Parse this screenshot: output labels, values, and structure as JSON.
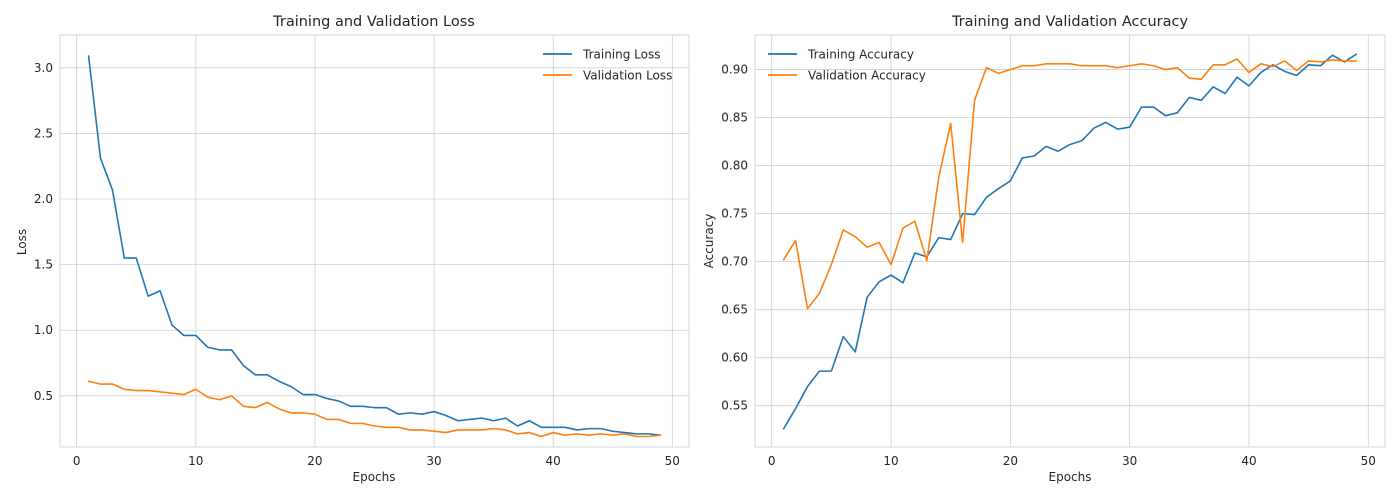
{
  "chart_data": [
    {
      "type": "line",
      "title": "Training and Validation Loss",
      "xlabel": "Epochs",
      "ylabel": "Loss",
      "xlim": [
        -1.4,
        51.4
      ],
      "ylim": [
        0.11,
        3.25
      ],
      "xticks": [
        0,
        10,
        20,
        30,
        40,
        50
      ],
      "yticks": [
        0.5,
        1.0,
        1.5,
        2.0,
        2.5,
        3.0
      ],
      "ytick_format": 1,
      "grid": true,
      "legend_position": "top-right",
      "x": [
        1,
        2,
        3,
        4,
        5,
        6,
        7,
        8,
        9,
        10,
        11,
        12,
        13,
        14,
        15,
        16,
        17,
        18,
        19,
        20,
        21,
        22,
        23,
        24,
        25,
        26,
        27,
        28,
        29,
        30,
        31,
        32,
        33,
        34,
        35,
        36,
        37,
        38,
        39,
        40,
        41,
        42,
        43,
        44,
        45,
        46,
        47,
        48,
        49
      ],
      "series": [
        {
          "name": "Training Loss",
          "color": "#1f77b4",
          "values": [
            3.09,
            2.31,
            2.07,
            1.55,
            1.55,
            1.26,
            1.3,
            1.04,
            0.96,
            0.96,
            0.87,
            0.85,
            0.85,
            0.73,
            0.66,
            0.66,
            0.61,
            0.57,
            0.51,
            0.51,
            0.48,
            0.46,
            0.42,
            0.42,
            0.41,
            0.41,
            0.36,
            0.37,
            0.36,
            0.38,
            0.35,
            0.31,
            0.32,
            0.33,
            0.31,
            0.33,
            0.27,
            0.31,
            0.26,
            0.26,
            0.26,
            0.24,
            0.25,
            0.25,
            0.23,
            0.22,
            0.21,
            0.21,
            0.2
          ]
        },
        {
          "name": "Validation Loss",
          "color": "#ff7f0e",
          "values": [
            0.61,
            0.59,
            0.59,
            0.55,
            0.54,
            0.54,
            0.53,
            0.52,
            0.51,
            0.55,
            0.49,
            0.47,
            0.5,
            0.42,
            0.41,
            0.45,
            0.4,
            0.37,
            0.37,
            0.36,
            0.32,
            0.32,
            0.29,
            0.29,
            0.27,
            0.26,
            0.26,
            0.24,
            0.24,
            0.23,
            0.22,
            0.24,
            0.24,
            0.24,
            0.25,
            0.24,
            0.21,
            0.22,
            0.19,
            0.22,
            0.2,
            0.21,
            0.2,
            0.21,
            0.2,
            0.21,
            0.19,
            0.19,
            0.2
          ]
        }
      ]
    },
    {
      "type": "line",
      "title": "Training and Validation Accuracy",
      "xlabel": "Epochs",
      "ylabel": "Accuracy",
      "xlim": [
        -1.4,
        51.4
      ],
      "ylim": [
        0.507,
        0.936
      ],
      "xticks": [
        0,
        10,
        20,
        30,
        40,
        50
      ],
      "yticks": [
        0.55,
        0.6,
        0.65,
        0.7,
        0.75,
        0.8,
        0.85,
        0.9
      ],
      "ytick_format": 2,
      "grid": true,
      "legend_position": "top-left",
      "x": [
        1,
        2,
        3,
        4,
        5,
        6,
        7,
        8,
        9,
        10,
        11,
        12,
        13,
        14,
        15,
        16,
        17,
        18,
        19,
        20,
        21,
        22,
        23,
        24,
        25,
        26,
        27,
        28,
        29,
        30,
        31,
        32,
        33,
        34,
        35,
        36,
        37,
        38,
        39,
        40,
        41,
        42,
        43,
        44,
        45,
        46,
        47,
        48,
        49
      ],
      "series": [
        {
          "name": "Training Accuracy",
          "color": "#1f77b4",
          "values": [
            0.526,
            0.547,
            0.57,
            0.586,
            0.586,
            0.622,
            0.606,
            0.663,
            0.679,
            0.686,
            0.678,
            0.709,
            0.705,
            0.725,
            0.723,
            0.75,
            0.749,
            0.767,
            0.776,
            0.784,
            0.808,
            0.81,
            0.82,
            0.815,
            0.822,
            0.826,
            0.839,
            0.845,
            0.838,
            0.84,
            0.861,
            0.861,
            0.852,
            0.855,
            0.871,
            0.868,
            0.882,
            0.875,
            0.892,
            0.883,
            0.897,
            0.905,
            0.898,
            0.894,
            0.905,
            0.904,
            0.915,
            0.908,
            0.916
          ]
        },
        {
          "name": "Validation Accuracy",
          "color": "#ff7f0e",
          "values": [
            0.702,
            0.722,
            0.651,
            0.667,
            0.697,
            0.733,
            0.726,
            0.715,
            0.72,
            0.697,
            0.735,
            0.742,
            0.701,
            0.788,
            0.844,
            0.72,
            0.868,
            0.902,
            0.896,
            0.9,
            0.904,
            0.904,
            0.906,
            0.906,
            0.906,
            0.904,
            0.904,
            0.904,
            0.902,
            0.904,
            0.906,
            0.904,
            0.9,
            0.902,
            0.891,
            0.89,
            0.905,
            0.905,
            0.911,
            0.897,
            0.906,
            0.903,
            0.909,
            0.899,
            0.909,
            0.908,
            0.91,
            0.909,
            0.909
          ]
        }
      ]
    }
  ]
}
